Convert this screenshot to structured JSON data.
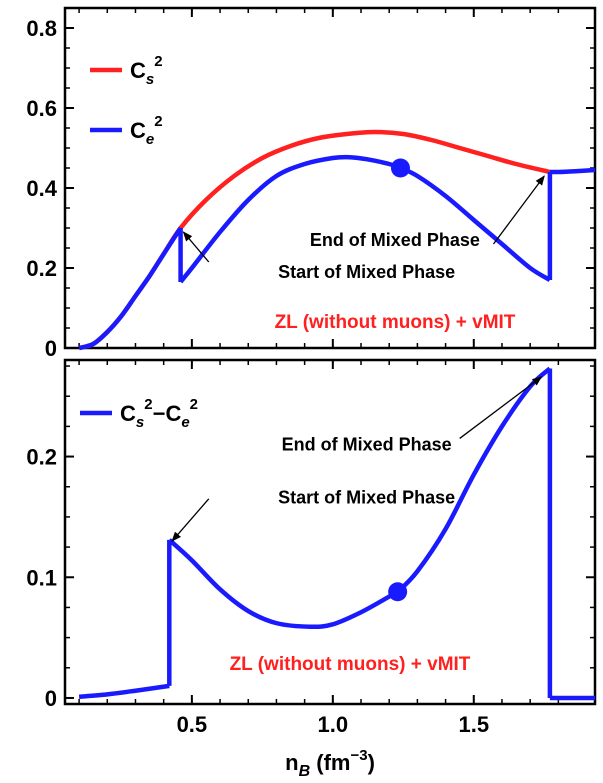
{
  "colors": {
    "cs2": "#ff2020",
    "ce2": "#1a1aff",
    "diff": "#1a1aff",
    "model_text": "#ff2020",
    "axis": "#000000"
  },
  "chart_data": [
    {
      "type": "line",
      "panel": "top",
      "xlim": [
        0.05,
        1.93
      ],
      "ylim": [
        0,
        0.85
      ],
      "yticks": [
        0,
        0.2,
        0.4,
        0.6,
        0.8
      ],
      "ytick_labels": [
        "0",
        "0.2",
        "0.4",
        "0.6",
        "0.8"
      ],
      "grid": false,
      "legend_position": "top-left",
      "series": [
        {
          "name": "C_s^2",
          "legend_main": "C",
          "legend_sub": "s",
          "legend_sup": "2",
          "color_key": "cs2",
          "x": [
            0.1,
            0.15,
            0.2,
            0.25,
            0.3,
            0.35,
            0.4,
            0.46,
            0.55,
            0.65,
            0.75,
            0.85,
            0.95,
            1.05,
            1.15,
            1.25,
            1.35,
            1.45,
            1.55,
            1.65,
            1.77
          ],
          "y": [
            0.0,
            0.01,
            0.04,
            0.08,
            0.13,
            0.18,
            0.235,
            0.3,
            0.37,
            0.43,
            0.475,
            0.505,
            0.525,
            0.535,
            0.54,
            0.535,
            0.52,
            0.5,
            0.48,
            0.46,
            0.44
          ]
        },
        {
          "name": "C_e^2",
          "legend_main": "C",
          "legend_sub": "e",
          "legend_sup": "2",
          "color_key": "ce2",
          "x": [
            0.1,
            0.15,
            0.2,
            0.25,
            0.3,
            0.35,
            0.4,
            0.46,
            0.46,
            0.5,
            0.6,
            0.7,
            0.8,
            0.9,
            1.0,
            1.06,
            1.12,
            1.2,
            1.24,
            1.3,
            1.4,
            1.5,
            1.6,
            1.7,
            1.77,
            1.77,
            1.8,
            1.86,
            1.93
          ],
          "y": [
            0.0,
            0.01,
            0.04,
            0.08,
            0.13,
            0.18,
            0.235,
            0.3,
            0.165,
            0.2,
            0.29,
            0.37,
            0.43,
            0.46,
            0.475,
            0.477,
            0.472,
            0.46,
            0.45,
            0.43,
            0.38,
            0.32,
            0.26,
            0.2,
            0.17,
            0.44,
            0.44,
            0.442,
            0.445
          ]
        }
      ],
      "marker": {
        "x": 1.24,
        "y": 0.45
      },
      "annotations": [
        {
          "text": "End of Mixed Phase",
          "x": 1.22,
          "y": 0.255,
          "arrow_from": [
            1.57,
            0.26
          ],
          "arrow_to": [
            1.75,
            0.43
          ]
        },
        {
          "text": "Start of Mixed Phase",
          "x": 1.12,
          "y": 0.175,
          "arrow_from": [
            0.56,
            0.215
          ],
          "arrow_to": [
            0.47,
            0.29
          ]
        }
      ],
      "model_label": "ZL (without muons) + vMIT"
    },
    {
      "type": "line",
      "panel": "bottom",
      "xlim": [
        0.05,
        1.93
      ],
      "ylim": [
        -0.005,
        0.28
      ],
      "yticks": [
        0,
        0.1,
        0.2
      ],
      "ytick_labels": [
        "0",
        "0.1",
        "0.2"
      ],
      "xticks": [
        0.5,
        1.0,
        1.5
      ],
      "xtick_labels": [
        "0.5",
        "1.0",
        "1.5"
      ],
      "grid": false,
      "legend_position": "top-left",
      "xlabel": {
        "main": "n",
        "sub": "B",
        "unit_pre": " (fm",
        "unit_sup": "−3",
        "unit_post": ")"
      },
      "series": [
        {
          "name": "C_s^2 − C_e^2",
          "legend_a": "C",
          "legend_a_sub": "s",
          "legend_a_sup": "2",
          "legend_op": "−",
          "legend_b": "C",
          "legend_b_sub": "e",
          "legend_b_sup": "2",
          "color_key": "diff",
          "x": [
            0.1,
            0.2,
            0.3,
            0.42,
            0.42,
            0.5,
            0.6,
            0.7,
            0.8,
            0.92,
            1.0,
            1.1,
            1.2,
            1.23,
            1.3,
            1.4,
            1.5,
            1.6,
            1.7,
            1.77,
            1.77,
            1.93
          ],
          "y": [
            0.001,
            0.003,
            0.006,
            0.01,
            0.131,
            0.114,
            0.09,
            0.072,
            0.062,
            0.059,
            0.061,
            0.071,
            0.084,
            0.088,
            0.105,
            0.14,
            0.185,
            0.225,
            0.258,
            0.273,
            0.0,
            0.0
          ]
        }
      ],
      "marker": {
        "x": 1.23,
        "y": 0.088
      },
      "annotations": [
        {
          "text": "End of Mixed Phase",
          "x": 1.12,
          "y": 0.205,
          "arrow_from": [
            1.45,
            0.215
          ],
          "arrow_to": [
            1.74,
            0.266
          ]
        },
        {
          "text": "Start of Mixed Phase",
          "x": 1.12,
          "y": 0.161,
          "arrow_from": [
            0.56,
            0.165
          ],
          "arrow_to": [
            0.43,
            0.13
          ]
        }
      ],
      "model_label": "ZL (without muons) + vMIT"
    }
  ]
}
